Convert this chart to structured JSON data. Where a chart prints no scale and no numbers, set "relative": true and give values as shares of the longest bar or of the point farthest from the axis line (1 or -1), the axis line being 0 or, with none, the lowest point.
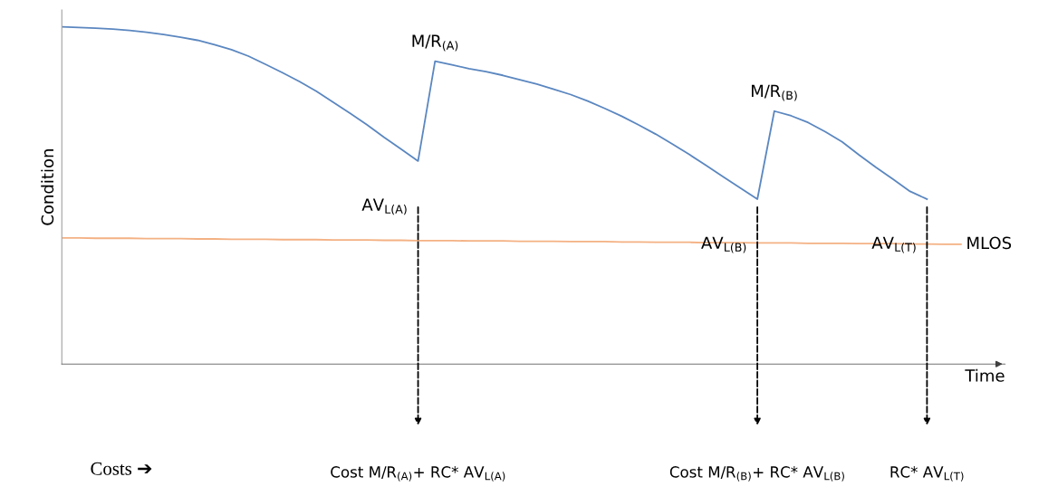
{
  "chart_data": {
    "type": "line",
    "relative": true,
    "xlabel": "Time",
    "ylabel": "Condition",
    "marker": "none",
    "line_style": "solid",
    "categories": [
      null,
      null,
      null,
      null,
      null,
      null,
      null,
      null,
      null,
      null,
      null,
      null,
      null,
      null,
      null,
      null,
      null,
      null,
      null,
      null,
      null,
      null,
      null,
      null,
      null,
      null,
      null,
      null,
      null,
      null,
      null,
      null,
      null,
      null,
      null,
      null,
      null,
      null,
      null,
      null,
      null,
      null,
      null,
      null,
      null,
      null,
      null,
      null,
      null,
      null,
      null,
      null,
      null,
      null
    ],
    "series": [
      {
        "color": "#5b87c0",
        "values": [
          1.0,
          0.998,
          0.996,
          0.993,
          0.989,
          0.984,
          0.977,
          0.969,
          0.96,
          0.947,
          0.932,
          0.913,
          0.889,
          0.864,
          0.838,
          0.809,
          0.776,
          0.743,
          0.709,
          0.672,
          0.637,
          0.602,
          0.898,
          0.887,
          0.876,
          0.867,
          0.856,
          0.843,
          0.83,
          0.815,
          0.799,
          0.78,
          0.758,
          0.735,
          0.709,
          0.682,
          0.652,
          0.621,
          0.588,
          0.555,
          0.522,
          0.489,
          0.75,
          0.736,
          0.716,
          0.689,
          0.659,
          0.62,
          0.583,
          0.548,
          0.512,
          0.489,
          null,
          null
        ]
      },
      {
        "name": "MLOS",
        "color": "#f4b183",
        "values": [
          0.374,
          0.374,
          0.373,
          0.373,
          0.373,
          0.372,
          0.372,
          0.372,
          0.371,
          0.371,
          0.37,
          0.37,
          0.37,
          0.369,
          0.369,
          0.369,
          0.368,
          0.368,
          0.368,
          0.367,
          0.367,
          0.366,
          0.366,
          0.366,
          0.365,
          0.365,
          0.365,
          0.364,
          0.364,
          0.364,
          0.363,
          0.363,
          0.363,
          0.362,
          0.362,
          0.361,
          0.361,
          0.361,
          0.36,
          0.36,
          0.36,
          0.359,
          0.359,
          0.359,
          0.358,
          0.358,
          0.358,
          0.357,
          0.357,
          0.357,
          0.356,
          0.356,
          0.355,
          0.355
        ]
      }
    ],
    "annotations": [
      "M/R$_{(A)}$",
      "M/R$_{(B)}$",
      "AV$_{L(A)}$",
      "AV$_{L(B)}$",
      "AV$_{L(T)}$",
      "Cost M/R$_{(A)}$+ RC* AV$_{L(A)}$",
      "Cost M/R$_{(B)}$+ RC* AV$_{L(B)}$",
      "RC* AV$_{L(T)}$",
      "Costs ➔"
    ]
  }
}
